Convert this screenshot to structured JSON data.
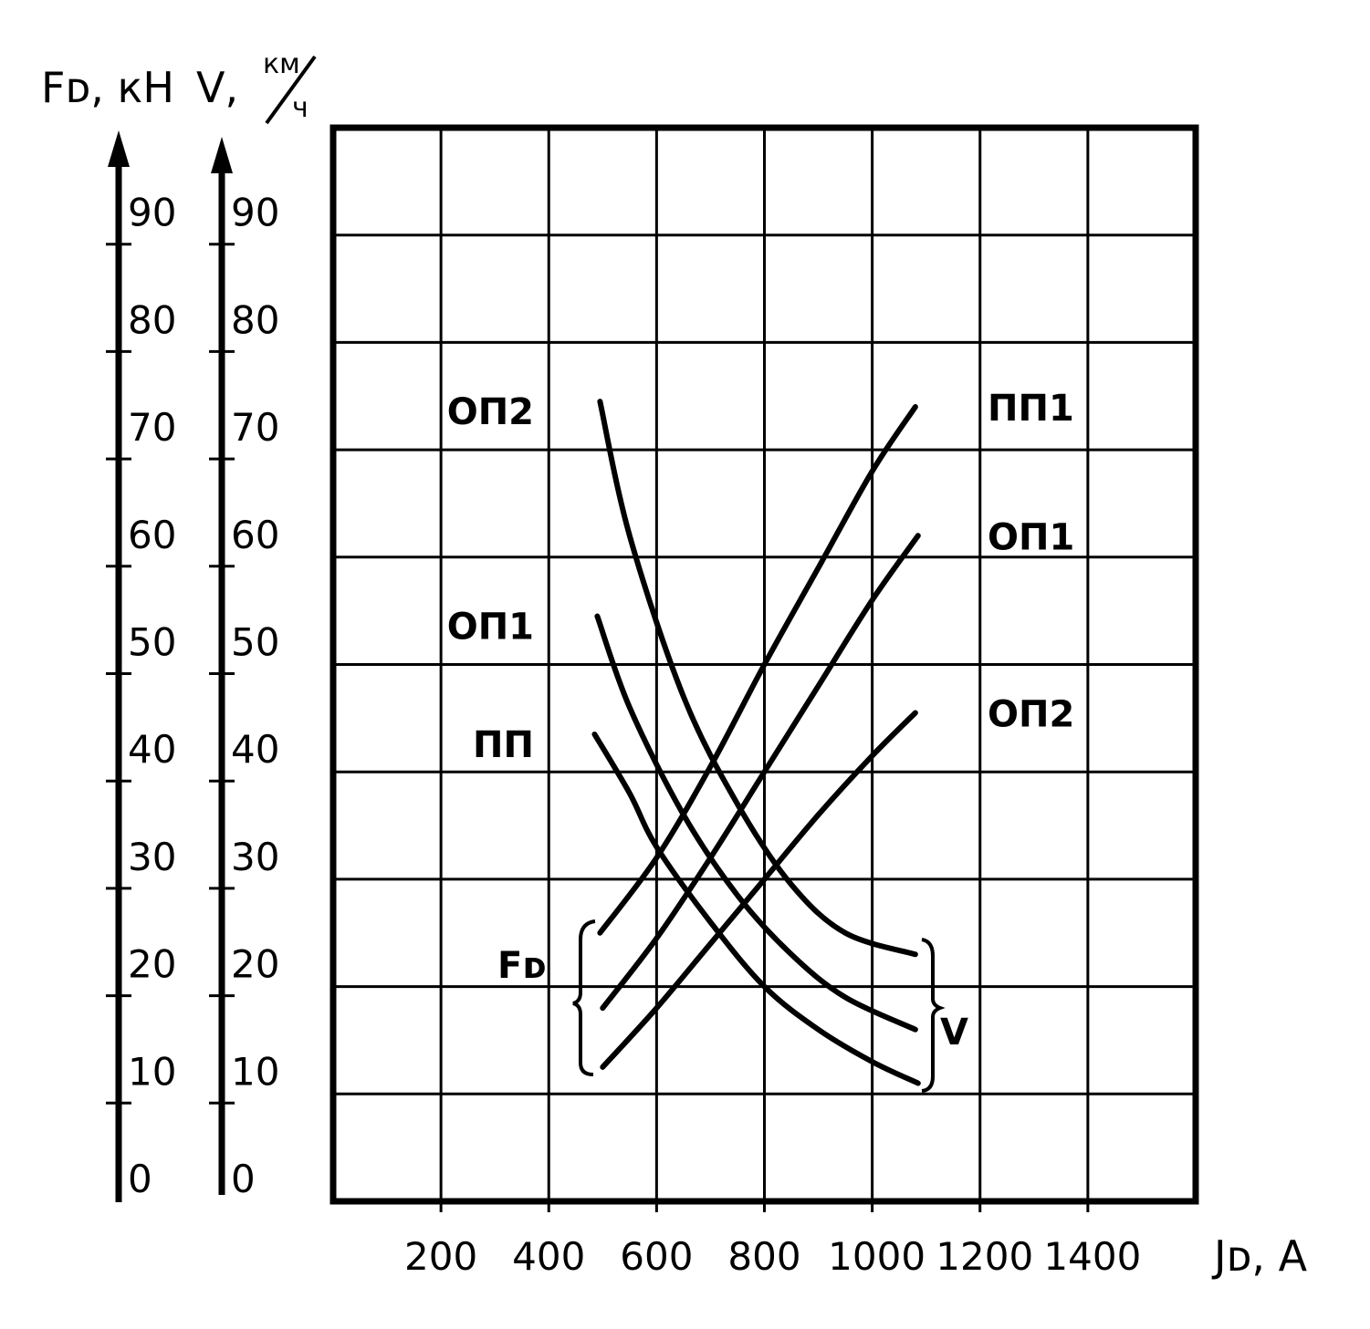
{
  "chart_data": {
    "type": "line",
    "title": "",
    "x_axis": {
      "label": "Jᴅ, A",
      "ticks": [
        200,
        400,
        600,
        800,
        1000,
        1200,
        1400
      ],
      "range": [
        0,
        1600
      ]
    },
    "y_axes": [
      {
        "id": "force",
        "label": "Fᴅ, кН",
        "ticks": [
          0,
          10,
          20,
          30,
          40,
          50,
          60,
          70,
          80,
          90
        ],
        "range": [
          0,
          100
        ]
      },
      {
        "id": "speed",
        "label_main": "V,",
        "label_unit_num": "км",
        "label_unit_den": "ч",
        "ticks": [
          0,
          10,
          20,
          30,
          40,
          50,
          60,
          70,
          80,
          90
        ],
        "range": [
          0,
          100
        ]
      }
    ],
    "grid": true,
    "series": [
      {
        "name": "ПП",
        "group": "Fᴅ",
        "x": [
          485,
          550,
          600,
          700,
          800,
          900,
          1000,
          1085
        ],
        "y": [
          43.5,
          38,
          33,
          26,
          20,
          16,
          13,
          11
        ]
      },
      {
        "name": "ОП1",
        "group": "Fᴅ",
        "x": [
          490,
          550,
          650,
          750,
          850,
          950,
          1080
        ],
        "y": [
          54.5,
          46,
          36,
          28.5,
          23,
          19,
          16
        ]
      },
      {
        "name": "ОП2",
        "group": "Fᴅ",
        "x": [
          495,
          550,
          650,
          750,
          850,
          950,
          1080
        ],
        "y": [
          74.5,
          62,
          47,
          37,
          29.5,
          25,
          23
        ]
      },
      {
        "name": "ПП1",
        "group": "V",
        "x": [
          495,
          600,
          700,
          800,
          900,
          1000,
          1080
        ],
        "y": [
          25,
          32,
          40.5,
          50,
          59,
          68,
          74
        ]
      },
      {
        "name": "ОП1",
        "group": "V",
        "x": [
          500,
          600,
          700,
          800,
          900,
          1000,
          1085
        ],
        "y": [
          18,
          24.5,
          32,
          40,
          48,
          56,
          62
        ]
      },
      {
        "name": "ОП2",
        "group": "V",
        "x": [
          500,
          600,
          700,
          800,
          900,
          1000,
          1080
        ],
        "y": [
          12.5,
          18,
          24,
          30,
          36,
          41.5,
          45.5
        ]
      }
    ],
    "group_labels": [
      "Fᴅ",
      "V"
    ]
  }
}
